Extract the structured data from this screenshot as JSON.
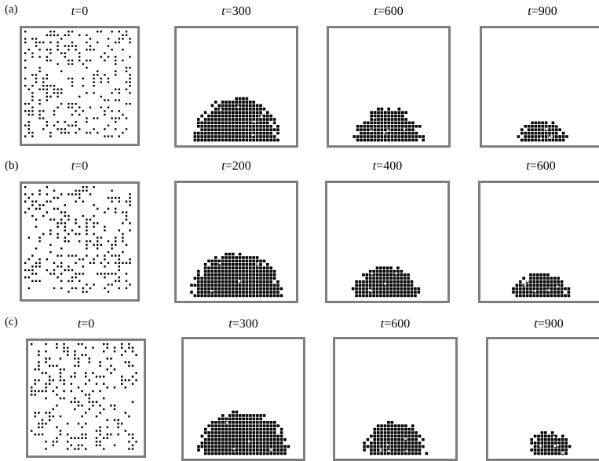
{
  "rows": [
    {
      "label": "(a)",
      "panels": [
        {
          "time": "0",
          "state": "random",
          "fill": 0.5
        },
        {
          "time": "300",
          "state": "droplet",
          "radius_frac": 0.38,
          "height_frac": 0.38
        },
        {
          "time": "600",
          "state": "droplet",
          "radius_frac": 0.3,
          "height_frac": 0.29
        },
        {
          "time": "900",
          "state": "droplet",
          "radius_frac": 0.22,
          "height_frac": 0.17
        }
      ]
    },
    {
      "label": "(b)",
      "panels": [
        {
          "time": "0",
          "state": "random",
          "fill": 0.5
        },
        {
          "time": "200",
          "state": "droplet",
          "radius_frac": 0.4,
          "height_frac": 0.37
        },
        {
          "time": "400",
          "state": "droplet",
          "radius_frac": 0.31,
          "height_frac": 0.24
        },
        {
          "time": "600",
          "state": "droplet",
          "radius_frac": 0.25,
          "height_frac": 0.19
        }
      ]
    },
    {
      "label": "(c)",
      "panels": [
        {
          "time": "0",
          "state": "random",
          "fill": 0.5
        },
        {
          "time": "300",
          "state": "droplet",
          "radius_frac": 0.39,
          "height_frac": 0.37
        },
        {
          "time": "600",
          "state": "droplet",
          "radius_frac": 0.28,
          "height_frac": 0.27
        },
        {
          "time": "900",
          "state": "droplet",
          "radius_frac": 0.2,
          "height_frac": 0.18
        }
      ]
    }
  ],
  "time_prefix": "t",
  "equals": "=",
  "colors": {
    "frame": "#7f7f7f",
    "particle": "#000000",
    "hole": "#ffffff"
  }
}
